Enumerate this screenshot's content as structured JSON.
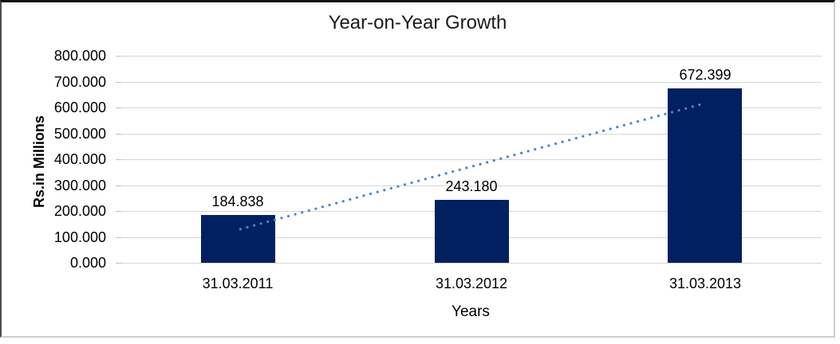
{
  "chart_data": {
    "type": "bar",
    "title": "Year-on-Year Growth",
    "xlabel": "Years",
    "ylabel": "Rs.in Millions",
    "categories": [
      "31.03.2011",
      "31.03.2012",
      "31.03.2013"
    ],
    "values": [
      184.838,
      243.18,
      672.399
    ],
    "data_labels": [
      "184.838",
      "243.180",
      "672.399"
    ],
    "ylim": [
      0,
      800
    ],
    "ytick_step": 100,
    "ytick_labels": [
      "0.000",
      "100.000",
      "200.000",
      "300.000",
      "400.000",
      "500.000",
      "600.000",
      "700.000",
      "800.000"
    ],
    "grid": true,
    "legend": false,
    "bar_color": "#002060",
    "gridline_color": "#d6d6d6",
    "trendline": {
      "type": "linear",
      "style": "dotted",
      "color": "#4a86c8",
      "start_value": 130,
      "end_value": 612
    }
  }
}
